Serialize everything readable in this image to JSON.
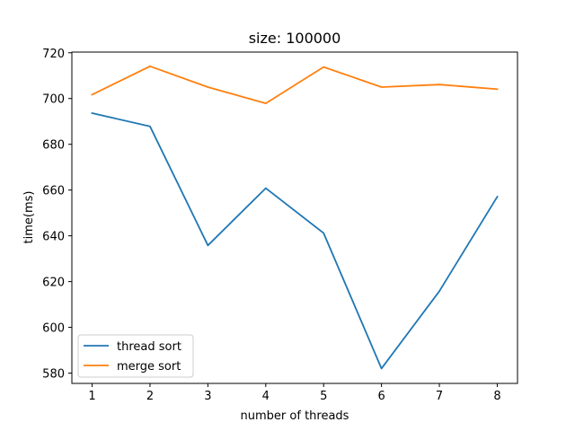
{
  "chart_data": {
    "type": "line",
    "title": "size: 100000",
    "xlabel": "number of threads",
    "ylabel": "time(ms)",
    "x": [
      1,
      2,
      3,
      4,
      5,
      6,
      7,
      8
    ],
    "xlim": [
      0.65,
      8.35
    ],
    "ylim": [
      575.5,
      720.3
    ],
    "xticks": [
      1,
      2,
      3,
      4,
      5,
      6,
      7,
      8
    ],
    "yticks": [
      580,
      600,
      620,
      640,
      660,
      680,
      700,
      720
    ],
    "grid": false,
    "legend_position": "lower-left",
    "series": [
      {
        "name": "thread sort",
        "color": "#1f77b4",
        "values": [
          693.6,
          687.8,
          635.8,
          660.8,
          641.2,
          582.0,
          615.8,
          657.1
        ]
      },
      {
        "name": "merge sort",
        "color": "#ff7f0e",
        "values": [
          701.7,
          714.1,
          705.0,
          697.9,
          713.8,
          705.0,
          706.1,
          704.1
        ]
      }
    ]
  }
}
